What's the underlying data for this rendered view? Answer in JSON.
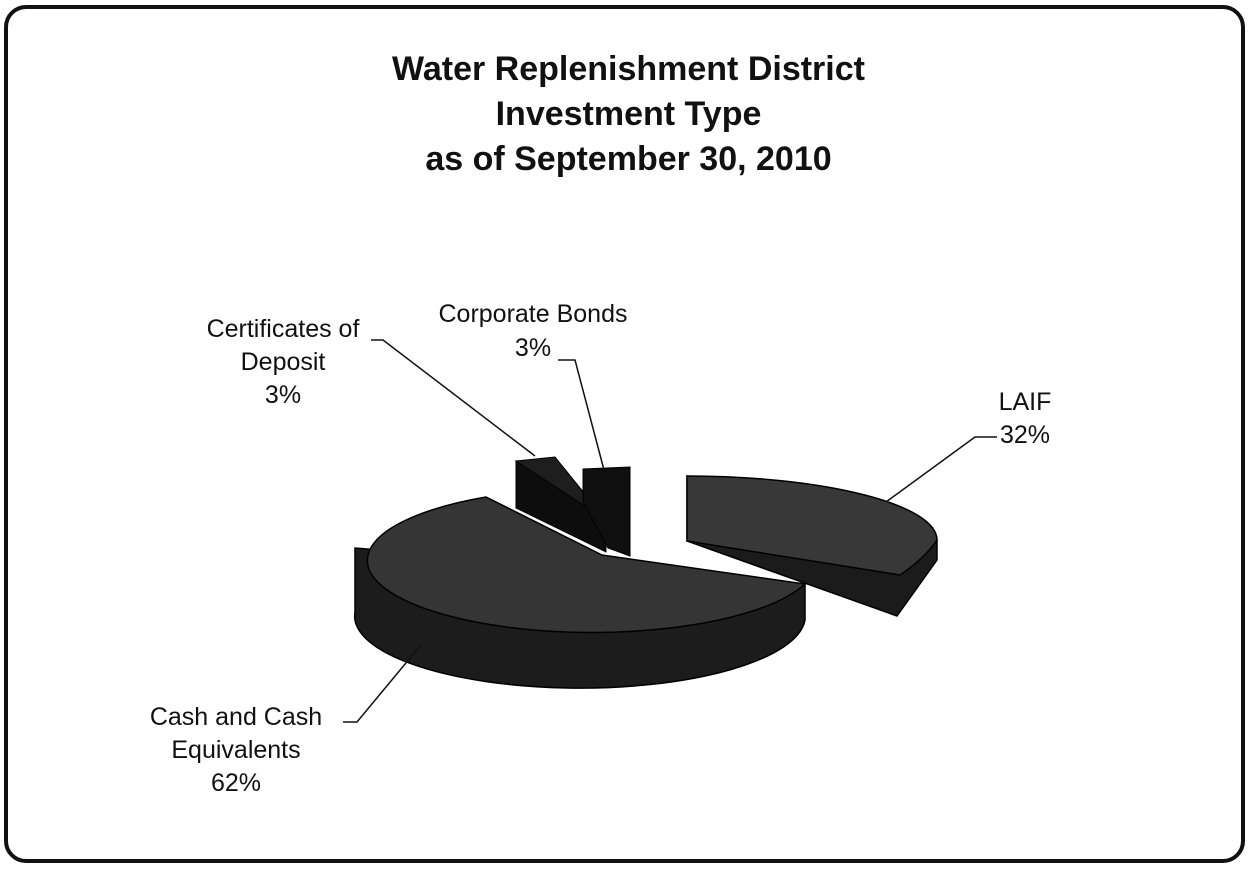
{
  "chart_data": {
    "type": "pie",
    "style": "3d-exploded",
    "title_lines": [
      "Water Replenishment District",
      "Investment Type",
      "as of September 30, 2010"
    ],
    "slices": [
      {
        "label_lines": [
          "LAIF"
        ],
        "pct_label": "32%",
        "value": 32
      },
      {
        "label_lines": [
          "Corporate Bonds"
        ],
        "pct_label": "3%",
        "value": 3
      },
      {
        "label_lines": [
          "Certificates of",
          "Deposit"
        ],
        "pct_label": "3%",
        "value": 3
      },
      {
        "label_lines": [
          "Cash and Cash",
          "Equivalents"
        ],
        "pct_label": "62%",
        "value": 62
      }
    ],
    "colors": {
      "slice_top": "#3a3a3a",
      "slice_side": "#1a1a1a",
      "small_slice": "#111111"
    }
  }
}
